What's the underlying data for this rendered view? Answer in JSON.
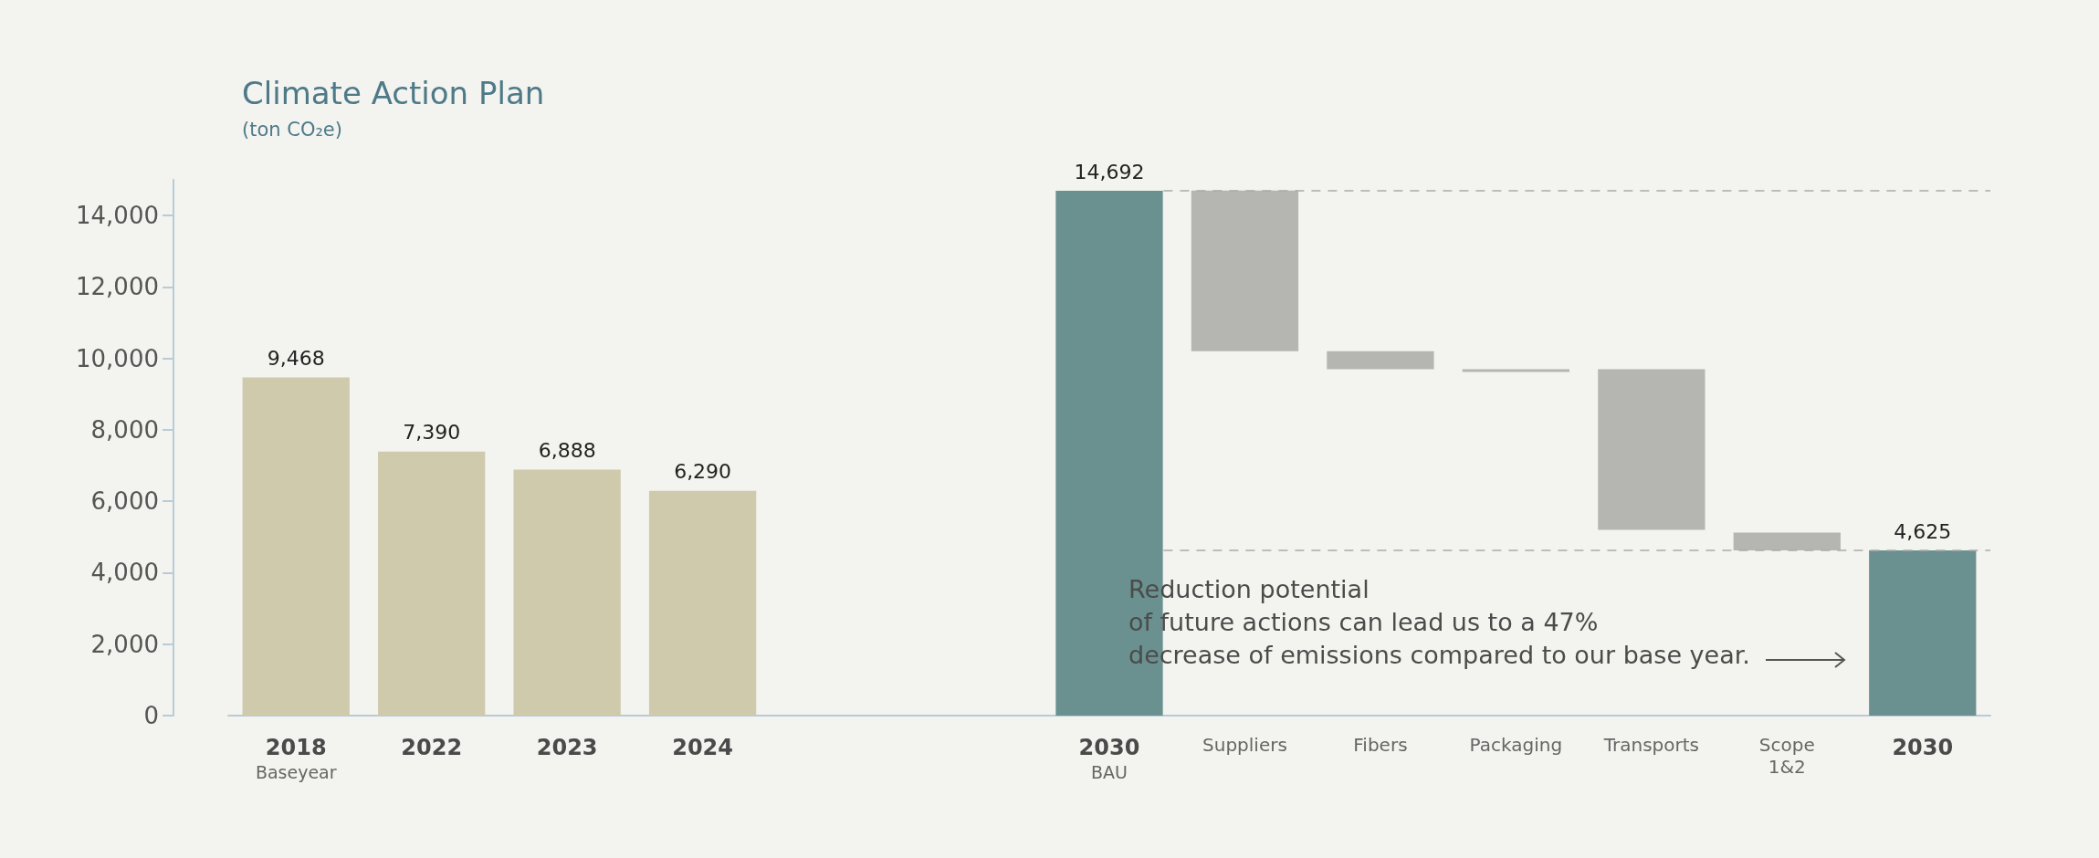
{
  "chart_data": {
    "type": "bar",
    "title": "Climate Action Plan",
    "subtitle": "(ton CO₂e)",
    "categories": [
      "2018\nBaseyear",
      "2022",
      "2023",
      "2024",
      null,
      null,
      "2030\nBAU",
      "Suppliers",
      "Fibers",
      "Packaging",
      "Transports",
      "Scope\n1&2",
      "2030"
    ],
    "values": [
      9468,
      7390,
      6888,
      6290,
      null,
      null,
      14692,
      4500,
      500,
      20,
      4500,
      500,
      4625
    ],
    "base": [
      0,
      0,
      0,
      0,
      null,
      null,
      0,
      10200,
      9700,
      9680,
      5200,
      4625,
      0
    ],
    "colors": [
      "#cfcaab",
      "#cfcaab",
      "#cfcaab",
      "#cfcaab",
      null,
      null,
      "#6a9190",
      "#b5b5b2",
      "#b5b5b2",
      "#b5b5b2",
      "#b5b5b2",
      "#b5b5b2",
      "#6a9190"
    ],
    "value_labels": [
      "9,468",
      "7,390",
      "6,888",
      "6,290",
      null,
      null,
      "14,692",
      null,
      null,
      null,
      null,
      null,
      "4,625"
    ],
    "ylim": [
      0,
      15000
    ],
    "yticks": [
      0,
      {
        "value": 2000,
        "label": "2,000"
      },
      {
        "value": 4000,
        "label": "4,000"
      },
      {
        "value": 6000,
        "label": "6,000"
      },
      {
        "value": 8000,
        "label": "8,000"
      },
      {
        "value": 10000,
        "label": "10,000"
      },
      {
        "value": 12000,
        "label": "12,000"
      },
      {
        "value": 14000,
        "label": "14,000"
      }
    ],
    "ref_lines": [
      {
        "axis": "y",
        "value": 14692,
        "line_style": "dashed",
        "color": "#aaaaaa"
      },
      {
        "axis": "y",
        "value": 4625,
        "line_style": "dashed",
        "color": "#aaaaaa"
      }
    ],
    "annotations": [
      "Reduction potential\nof future actions can lead us to a 47%\ndecrease of emissions compared to our base year."
    ],
    "grid": false
  }
}
